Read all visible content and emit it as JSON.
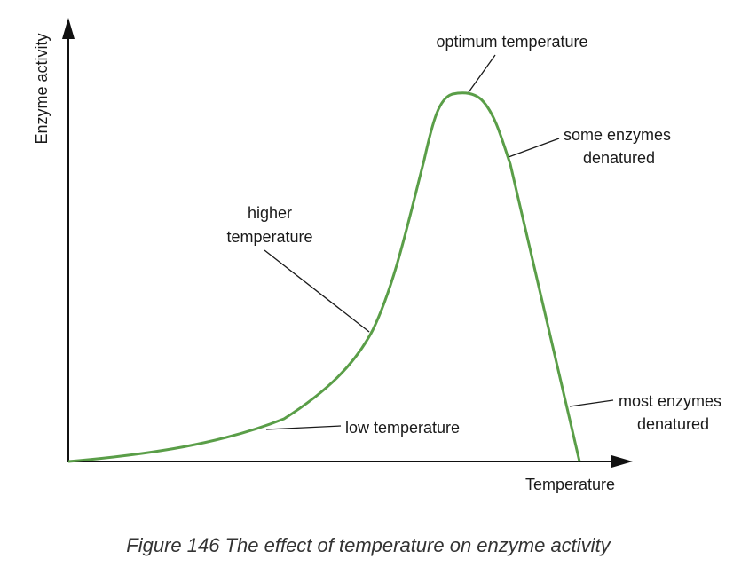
{
  "diagram": {
    "y_axis_label": "Enzyme activity",
    "x_axis_label": "Temperature",
    "curve_color": "#5a9e48",
    "annotations": {
      "optimum": "optimum temperature",
      "some_denatured_1": "some enzymes",
      "some_denatured_2": "denatured",
      "higher_1": "higher",
      "higher_2": "temperature",
      "low": "low temperature",
      "most_denatured_1": "most enzymes",
      "most_denatured_2": "denatured"
    },
    "caption": "Figure 146 The effect of temperature on enzyme activity"
  }
}
